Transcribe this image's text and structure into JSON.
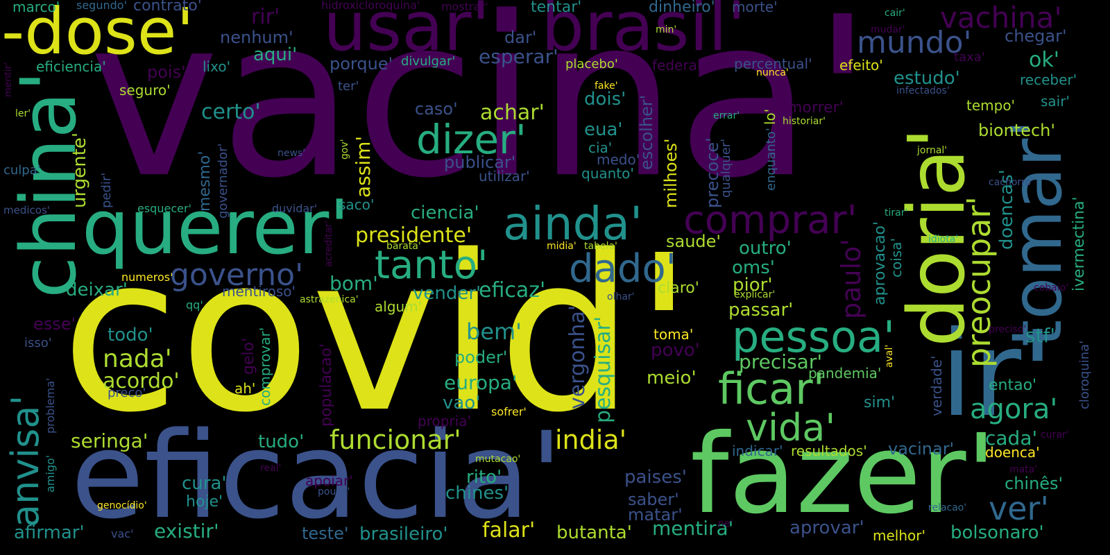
{
  "palette": {
    "dark_purple": "#440154",
    "indigo": "#3b528b",
    "slate": "#31688e",
    "teal": "#21918c",
    "green_teal": "#27ad81",
    "green": "#5ec962",
    "yellow_green": "#addc30",
    "yellow": "#dde318",
    "bright_yellow": "#fde725"
  },
  "words": [
    {
      "text": "vacina'",
      "color": "dark_purple"
    },
    {
      "text": "covid'",
      "color": "yellow"
    },
    {
      "text": "eficacia'",
      "color": "indigo"
    },
    {
      "text": "fazer'",
      "color": "green"
    },
    {
      "text": "usar'",
      "color": "dark_purple"
    },
    {
      "text": "brasil'",
      "color": "dark_purple"
    },
    {
      "text": "-dose'",
      "color": "yellow"
    },
    {
      "text": "querer'",
      "color": "green_teal"
    },
    {
      "text": "ir'",
      "color": "slate"
    },
    {
      "text": "china'",
      "color": "green_teal"
    },
    {
      "text": "doria'",
      "color": "yellow_green"
    },
    {
      "text": "tomar'",
      "color": "slate"
    },
    {
      "text": "ainda'",
      "color": "teal"
    },
    {
      "text": "comprar'",
      "color": "dark_purple"
    },
    {
      "text": "tanto'",
      "color": "green_teal"
    },
    {
      "text": "dado'",
      "color": "slate"
    },
    {
      "text": "pessoa'",
      "color": "green_teal"
    },
    {
      "text": "ficar'",
      "color": "green"
    },
    {
      "text": "vida'",
      "color": "green"
    },
    {
      "text": "dizer'",
      "color": "green_teal"
    },
    {
      "text": "anvisa'",
      "color": "teal"
    },
    {
      "text": "mundo'",
      "color": "indigo"
    },
    {
      "text": "vachina'",
      "color": "dark_purple"
    },
    {
      "text": "preocupar'",
      "color": "yellow_green"
    },
    {
      "text": "paulo'",
      "color": "dark_purple"
    },
    {
      "text": "governo'",
      "color": "indigo"
    },
    {
      "text": "funcionar'",
      "color": "yellow_green"
    },
    {
      "text": "india'",
      "color": "yellow"
    },
    {
      "text": "agora'",
      "color": "green_teal"
    },
    {
      "text": "ver'",
      "color": "slate"
    },
    {
      "text": "nada'",
      "color": "yellow_green"
    },
    {
      "text": "acordo'",
      "color": "yellow_green"
    },
    {
      "text": "certo'",
      "color": "teal"
    },
    {
      "text": "achar'",
      "color": "yellow_green"
    },
    {
      "text": "mentira'",
      "color": "green_teal"
    },
    {
      "text": "falar'",
      "color": "yellow"
    },
    {
      "text": "existir'",
      "color": "green_teal"
    },
    {
      "text": "afirmar'",
      "color": "teal"
    },
    {
      "text": "brasileiro'",
      "color": "teal"
    },
    {
      "text": "teste'",
      "color": "slate"
    },
    {
      "text": "butanta'",
      "color": "yellow_green"
    },
    {
      "text": "aprovar'",
      "color": "indigo"
    },
    {
      "text": "bolsonaro'",
      "color": "green_teal"
    },
    {
      "text": "melhor'",
      "color": "yellow"
    },
    {
      "text": "chines'",
      "color": "teal"
    },
    {
      "text": "rito'",
      "color": "green_teal"
    },
    {
      "text": "cura'",
      "color": "teal"
    },
    {
      "text": "hoje'",
      "color": "teal"
    },
    {
      "text": "tudo'",
      "color": "green_teal"
    },
    {
      "text": "seringa'",
      "color": "yellow_green"
    },
    {
      "text": "europa'",
      "color": "green_teal"
    },
    {
      "text": "vao'",
      "color": "teal"
    },
    {
      "text": "sofrer'",
      "color": "bright_yellow"
    },
    {
      "text": "propria'",
      "color": "dark_purple"
    },
    {
      "text": "poder'",
      "color": "green_teal"
    },
    {
      "text": "bem'",
      "color": "teal"
    },
    {
      "text": "todo'",
      "color": "teal"
    },
    {
      "text": "vergonha'",
      "color": "indigo"
    },
    {
      "text": "pesquisar'",
      "color": "green_teal"
    },
    {
      "text": "meio'",
      "color": "yellow_green"
    },
    {
      "text": "povo'",
      "color": "dark_purple"
    },
    {
      "text": "toma'",
      "color": "bright_yellow"
    },
    {
      "text": "precisar'",
      "color": "green"
    },
    {
      "text": "passar'",
      "color": "yellow_green"
    },
    {
      "text": "pior'",
      "color": "yellow_green"
    },
    {
      "text": "oms'",
      "color": "green_teal"
    },
    {
      "text": "outro'",
      "color": "green_teal"
    },
    {
      "text": "saude'",
      "color": "yellow_green"
    },
    {
      "text": "claro'",
      "color": "yellow_green"
    },
    {
      "text": "vender'",
      "color": "teal"
    },
    {
      "text": "eficaz'",
      "color": "green_teal"
    },
    {
      "text": "algum'",
      "color": "yellow_green"
    },
    {
      "text": "bom'",
      "color": "green_teal"
    },
    {
      "text": "deixar'",
      "color": "green_teal"
    },
    {
      "text": "presidente'",
      "color": "yellow"
    },
    {
      "text": "ciencia'",
      "color": "green_teal"
    },
    {
      "text": "saco'",
      "color": "teal"
    },
    {
      "text": "assim'",
      "color": "yellow"
    },
    {
      "text": "publicar'",
      "color": "indigo"
    },
    {
      "text": "utilizar'",
      "color": "indigo"
    },
    {
      "text": "quanto'",
      "color": "teal"
    },
    {
      "text": "medo'",
      "color": "indigo"
    },
    {
      "text": "cia'",
      "color": "teal"
    },
    {
      "text": "eua'",
      "color": "teal"
    },
    {
      "text": "dois'",
      "color": "teal"
    },
    {
      "text": "caso'",
      "color": "indigo"
    },
    {
      "text": "escolher'",
      "color": "indigo"
    },
    {
      "text": "milhoes'",
      "color": "yellow"
    },
    {
      "text": "precoce'",
      "color": "indigo"
    },
    {
      "text": "qualquer'",
      "color": "indigo"
    },
    {
      "text": "enquanto'",
      "color": "slate"
    },
    {
      "text": "morrer'",
      "color": "dark_purple"
    },
    {
      "text": "lo'",
      "color": "yellow_green"
    },
    {
      "text": "estudo'",
      "color": "teal"
    },
    {
      "text": "ok'",
      "color": "green_teal"
    },
    {
      "text": "chegar'",
      "color": "indigo"
    },
    {
      "text": "receber'",
      "color": "teal"
    },
    {
      "text": "sair'",
      "color": "teal"
    },
    {
      "text": "tempo'",
      "color": "yellow_green"
    },
    {
      "text": "biontech'",
      "color": "yellow_green"
    },
    {
      "text": "doencas'",
      "color": "teal"
    },
    {
      "text": "ivermectina'",
      "color": "green_teal"
    },
    {
      "text": "stf'",
      "color": "teal"
    },
    {
      "text": "cloroquina'",
      "color": "indigo"
    },
    {
      "text": "aprovacao'",
      "color": "teal"
    },
    {
      "text": "coisa'",
      "color": "teal"
    },
    {
      "text": "verdade'",
      "color": "indigo"
    },
    {
      "text": "entao'",
      "color": "green_teal"
    },
    {
      "text": "sim'",
      "color": "teal"
    },
    {
      "text": "pandemia'",
      "color": "green"
    },
    {
      "text": "cada'",
      "color": "green_teal"
    },
    {
      "text": "vacinar'",
      "color": "slate"
    },
    {
      "text": "resultados'",
      "color": "yellow_green"
    },
    {
      "text": "indicar'",
      "color": "slate"
    },
    {
      "text": "doenca'",
      "color": "bright_yellow"
    },
    {
      "text": "chinês'",
      "color": "green_teal"
    },
    {
      "text": "paises'",
      "color": "indigo"
    },
    {
      "text": "saber'",
      "color": "indigo"
    },
    {
      "text": "matar'",
      "color": "indigo"
    },
    {
      "text": "dinheiro'",
      "color": "slate"
    },
    {
      "text": "morte'",
      "color": "indigo"
    },
    {
      "text": "tentar'",
      "color": "teal"
    },
    {
      "text": "rir'",
      "color": "dark_purple"
    },
    {
      "text": "nenhum'",
      "color": "indigo"
    },
    {
      "text": "aqui'",
      "color": "green_teal"
    },
    {
      "text": "dar'",
      "color": "indigo"
    },
    {
      "text": "esperar'",
      "color": "indigo"
    },
    {
      "text": "porque'",
      "color": "indigo"
    },
    {
      "text": "divulgar'",
      "color": "green_teal"
    },
    {
      "text": "placebo'",
      "color": "yellow_green"
    },
    {
      "text": "federal'",
      "color": "dark_purple"
    },
    {
      "text": "percentual'",
      "color": "indigo"
    },
    {
      "text": "efeito'",
      "color": "yellow"
    },
    {
      "text": "ter'",
      "color": "indigo"
    },
    {
      "text": "pois'",
      "color": "dark_purple"
    },
    {
      "text": "lixo'",
      "color": "teal"
    },
    {
      "text": "seguro'",
      "color": "yellow_green"
    },
    {
      "text": "eficiencia'",
      "color": "green_teal"
    },
    {
      "text": "marco'",
      "color": "green_teal"
    },
    {
      "text": "segundo'",
      "color": "slate"
    },
    {
      "text": "contrato'",
      "color": "indigo"
    },
    {
      "text": "hidroxicloroquina'",
      "color": "dark_purple"
    },
    {
      "text": "mostrar'",
      "color": "dark_purple"
    },
    {
      "text": "urgente'",
      "color": "yellow_green"
    },
    {
      "text": "mesmo'",
      "color": "slate"
    },
    {
      "text": "governador'",
      "color": "indigo"
    },
    {
      "text": "pedir'",
      "color": "indigo"
    },
    {
      "text": "culpa'",
      "color": "slate"
    },
    {
      "text": "medicos'",
      "color": "indigo"
    },
    {
      "text": "esquecer'",
      "color": "green_teal"
    },
    {
      "text": "duvidar'",
      "color": "indigo"
    },
    {
      "text": "numeros'",
      "color": "bright_yellow"
    },
    {
      "text": "mentiroso'",
      "color": "indigo"
    },
    {
      "text": "astrazenica'",
      "color": "yellow_green"
    },
    {
      "text": "acreditar'",
      "color": "dark_purple"
    },
    {
      "text": "barata'",
      "color": "yellow_green"
    },
    {
      "text": "midia'",
      "color": "bright_yellow"
    },
    {
      "text": "tabela'",
      "color": "yellow_green"
    },
    {
      "text": "olhar'",
      "color": "indigo"
    },
    {
      "text": "explicar'",
      "color": "yellow_green"
    },
    {
      "text": "esse'",
      "color": "dark_purple"
    },
    {
      "text": "isso'",
      "color": "indigo"
    },
    {
      "text": "qq'",
      "color": "green_teal"
    },
    {
      "text": "gelo'",
      "color": "dark_purple"
    },
    {
      "text": "comprovar'",
      "color": "green_teal"
    },
    {
      "text": "ah'",
      "color": "yellow"
    },
    {
      "text": "populacao'",
      "color": "dark_purple"
    },
    {
      "text": "preco'",
      "color": "indigo"
    },
    {
      "text": "problema'",
      "color": "indigo"
    },
    {
      "text": "amigo'",
      "color": "teal"
    },
    {
      "text": "genocídio'",
      "color": "bright_yellow"
    },
    {
      "text": "vac'",
      "color": "indigo"
    },
    {
      "text": "real'",
      "color": "dark_purple"
    },
    {
      "text": "apoiar'",
      "color": "dark_purple"
    },
    {
      "text": "pouco'",
      "color": "indigo"
    },
    {
      "text": "mutacao'",
      "color": "yellow_green"
    },
    {
      "text": "ne'",
      "color": "dark_purple"
    },
    {
      "text": "relacao'",
      "color": "slate"
    },
    {
      "text": "mata'",
      "color": "dark_purple"
    },
    {
      "text": "curar'",
      "color": "dark_purple"
    },
    {
      "text": "preciso'",
      "color": "dark_purple"
    },
    {
      "text": "cobaio'",
      "color": "dark_purple"
    },
    {
      "text": "idiota'",
      "color": "green_teal"
    },
    {
      "text": "tirar'",
      "color": "green_teal"
    },
    {
      "text": "cachorro'",
      "color": "indigo"
    },
    {
      "text": "jornal'",
      "color": "yellow_green"
    },
    {
      "text": "historiar'",
      "color": "yellow_green"
    },
    {
      "text": "errar'",
      "color": "green_teal"
    },
    {
      "text": "infectados'",
      "color": "indigo"
    },
    {
      "text": "taxa'",
      "color": "dark_purple"
    },
    {
      "text": "nunca'",
      "color": "bright_yellow"
    },
    {
      "text": "fake'",
      "color": "bright_yellow"
    },
    {
      "text": "min'",
      "color": "yellow_green"
    },
    {
      "text": "cair'",
      "color": "green_teal"
    },
    {
      "text": "mudar'",
      "color": "dark_purple"
    },
    {
      "text": "gov'",
      "color": "yellow_green"
    },
    {
      "text": "news'",
      "color": "indigo"
    },
    {
      "text": "mentir'",
      "color": "dark_purple"
    },
    {
      "text": "ler'",
      "color": "yellow_green"
    },
    {
      "text": "aval'",
      "color": "bright_yellow"
    }
  ]
}
